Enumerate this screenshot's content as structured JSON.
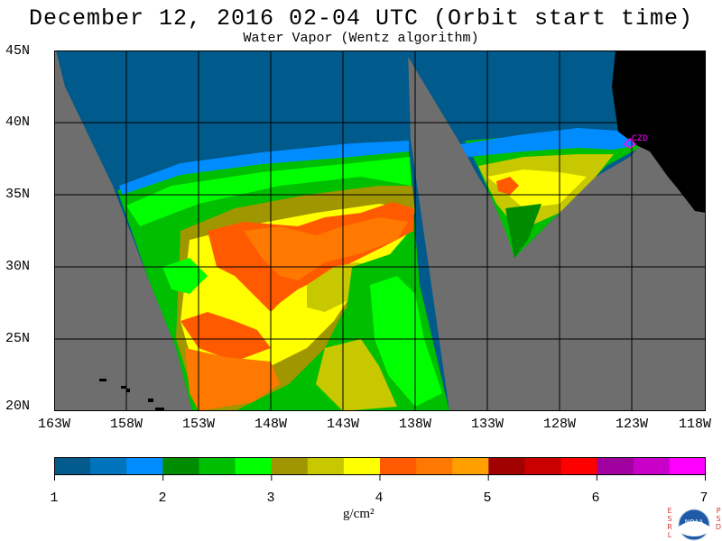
{
  "title": "December 12, 2016  02-04 UTC  (Orbit start time)",
  "subtitle": "Water Vapor (Wentz algorithm)",
  "lat_labels": [
    "45N",
    "40N",
    "35N",
    "30N",
    "25N",
    "20N"
  ],
  "lon_labels": [
    "163W",
    "158W",
    "153W",
    "148W",
    "143W",
    "138W",
    "133W",
    "128W",
    "123W",
    "118W"
  ],
  "station_label": "CZD",
  "colorbar": {
    "ticks": [
      "1",
      "2",
      "3",
      "4",
      "5",
      "6",
      "7"
    ],
    "unit": "g/cm²",
    "colors": [
      "#005a8c",
      "#0073bd",
      "#008cff",
      "#008c00",
      "#00be00",
      "#00ff00",
      "#a09600",
      "#c8c800",
      "#ffff00",
      "#ff5a00",
      "#ff7800",
      "#ffa000",
      "#a00000",
      "#c80000",
      "#ff0000",
      "#a000a0",
      "#c800c8",
      "#ff00ff"
    ]
  },
  "logo": {
    "left_letters": "ESRL",
    "right_letters": "PSD",
    "center": "NOAA"
  }
}
